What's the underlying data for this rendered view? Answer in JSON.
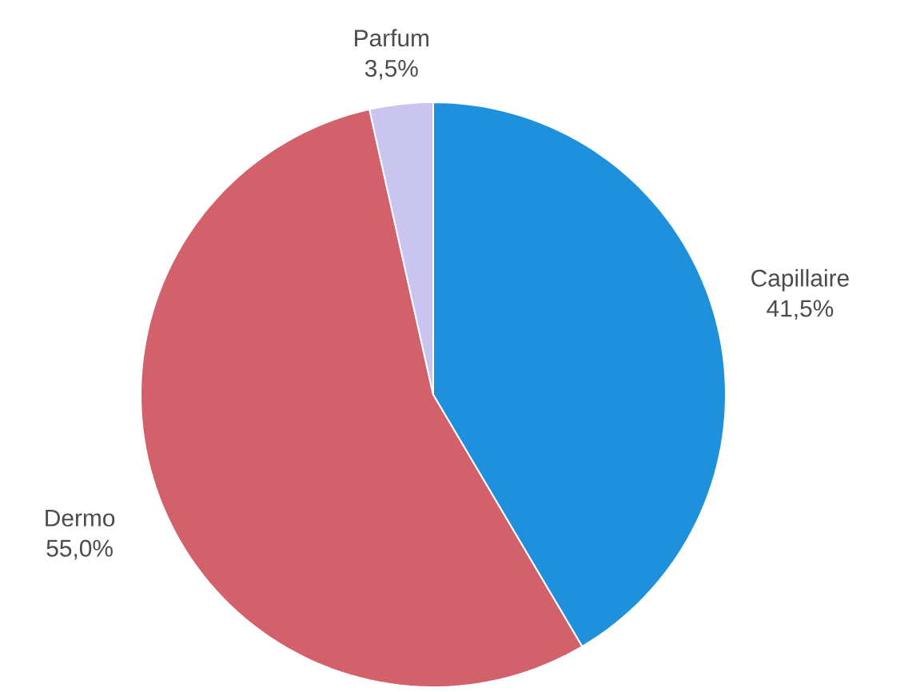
{
  "chart_data": {
    "type": "pie",
    "categories": [
      "Capillaire",
      "Dermo",
      "Parfum"
    ],
    "values": [
      41.5,
      55.0,
      3.5
    ],
    "value_labels": [
      "41,5%",
      "55,0%",
      "3,5%"
    ],
    "colors": [
      "#1e90dc",
      "#d2616b",
      "#c9c5ee"
    ]
  }
}
